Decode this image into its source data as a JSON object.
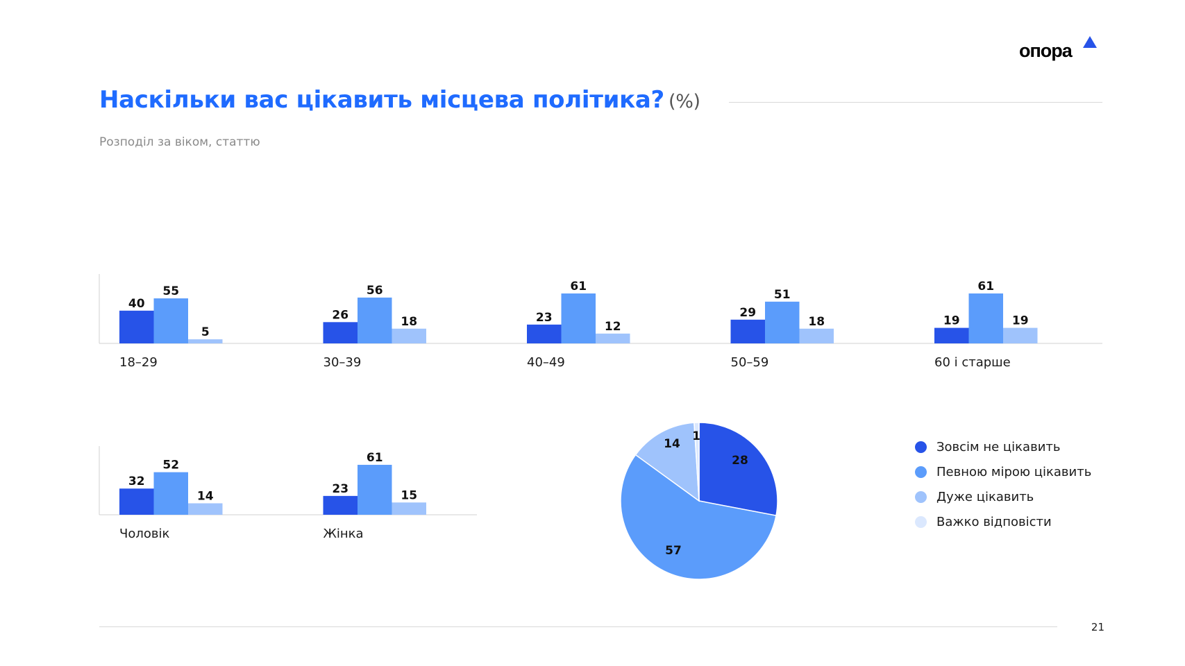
{
  "brand": {
    "logo_text": "опора"
  },
  "title": {
    "main": "Наскільки вас цікавить місцева політика?",
    "unit": "(%)"
  },
  "subtitle": "Розподіл за віком, статтю",
  "page_number": "21",
  "colors": {
    "not_interested": "#2753e8",
    "somewhat": "#5b9cfb",
    "very": "#9fc3fc",
    "hard_to_say": "#dbe8fe",
    "title": "#1f6bff"
  },
  "legend": [
    {
      "label": "Зовсім не цікавить",
      "color": "#2753e8"
    },
    {
      "label": "Певною мірою цікавить",
      "color": "#5b9cfb"
    },
    {
      "label": "Дуже цікавить",
      "color": "#9fc3fc"
    },
    {
      "label": "Важко відповісти",
      "color": "#dbe8fe"
    }
  ],
  "chart_data": [
    {
      "type": "bar",
      "categories": [
        "18–29",
        "30–39",
        "40–49",
        "50–59",
        "60 і старше"
      ],
      "series": [
        {
          "name": "Зовсім не цікавить",
          "values": [
            40,
            26,
            23,
            29,
            19
          ]
        },
        {
          "name": "Певною мірою цікавить",
          "values": [
            55,
            56,
            61,
            51,
            61
          ]
        },
        {
          "name": "Дуже цікавить",
          "values": [
            5,
            18,
            12,
            18,
            19
          ]
        }
      ],
      "ylim": [
        0,
        100
      ]
    },
    {
      "type": "bar",
      "categories": [
        "Чоловік",
        "Жінка"
      ],
      "series": [
        {
          "name": "Зовсім не цікавить",
          "values": [
            32,
            23
          ]
        },
        {
          "name": "Певною мірою цікавить",
          "values": [
            52,
            61
          ]
        },
        {
          "name": "Дуже цікавить",
          "values": [
            14,
            15
          ]
        }
      ],
      "ylim": [
        0,
        100
      ]
    },
    {
      "type": "pie",
      "slices": [
        {
          "name": "Зовсім не цікавить",
          "value": 28
        },
        {
          "name": "Певною мірою цікавить",
          "value": 57
        },
        {
          "name": "Дуже цікавить",
          "value": 14
        },
        {
          "name": "Важко відповісти",
          "value": 1
        }
      ],
      "legend_position": "right"
    }
  ]
}
